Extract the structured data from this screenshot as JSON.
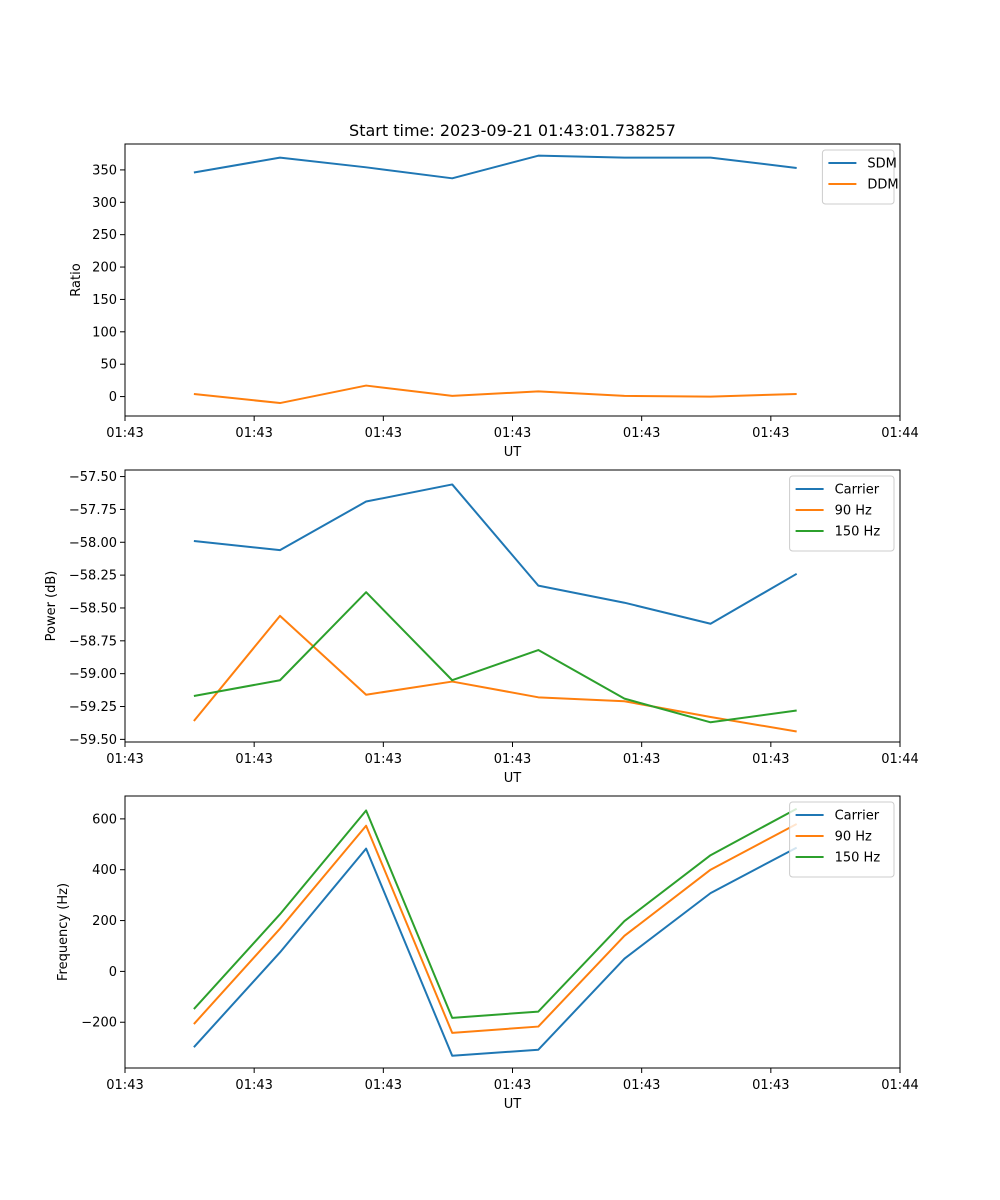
{
  "chart_data": [
    {
      "type": "line",
      "title": "Start time: 2023-09-21 01:43:01.738257",
      "xlabel": "UT",
      "ylabel": "Ratio",
      "x": [
        1,
        2,
        3,
        4,
        5,
        6,
        7,
        8
      ],
      "xlim": [
        0.2,
        9.2
      ],
      "x_ticks": [
        0.2,
        1.7,
        3.2,
        4.7,
        6.2,
        7.7,
        9.2
      ],
      "x_tick_labels": [
        "01:43",
        "01:43",
        "01:43",
        "01:43",
        "01:43",
        "01:43",
        "01:44"
      ],
      "ylim": [
        -30,
        390
      ],
      "y_ticks": [
        0,
        50,
        100,
        150,
        200,
        250,
        300,
        350
      ],
      "y_tick_labels": [
        "0",
        "50",
        "100",
        "150",
        "200",
        "250",
        "300",
        "350"
      ],
      "legend_position": "top-right",
      "series": [
        {
          "name": "SDM",
          "color": "#1f77b4",
          "values": [
            346,
            369,
            354,
            337,
            372,
            369,
            369,
            353
          ]
        },
        {
          "name": "DDM",
          "color": "#ff7f0e",
          "values": [
            4,
            -10,
            17,
            1,
            8,
            1,
            0,
            4
          ]
        }
      ]
    },
    {
      "type": "line",
      "xlabel": "UT",
      "ylabel": "Power (dB)",
      "x": [
        1,
        2,
        3,
        4,
        5,
        6,
        7,
        8
      ],
      "xlim": [
        0.2,
        9.2
      ],
      "x_ticks": [
        0.2,
        1.7,
        3.2,
        4.7,
        6.2,
        7.7,
        9.2
      ],
      "x_tick_labels": [
        "01:43",
        "01:43",
        "01:43",
        "01:43",
        "01:43",
        "01:43",
        "01:44"
      ],
      "ylim": [
        -59.52,
        -57.45
      ],
      "y_ticks": [
        -57.5,
        -57.75,
        -58.0,
        -58.25,
        -58.5,
        -58.75,
        -59.0,
        -59.25,
        -59.5
      ],
      "y_tick_labels": [
        "−57.50",
        "−57.75",
        "−58.00",
        "−58.25",
        "−58.50",
        "−58.75",
        "−59.00",
        "−59.25",
        "−59.50"
      ],
      "legend_position": "top-right",
      "series": [
        {
          "name": "Carrier",
          "color": "#1f77b4",
          "values": [
            -57.99,
            -58.06,
            -57.69,
            -57.56,
            -58.33,
            -58.46,
            -58.62,
            -58.24
          ]
        },
        {
          "name": "90 Hz",
          "color": "#ff7f0e",
          "values": [
            -59.36,
            -58.56,
            -59.16,
            -59.06,
            -59.18,
            -59.21,
            -59.33,
            -59.44
          ]
        },
        {
          "name": "150 Hz",
          "color": "#2ca02c",
          "values": [
            -59.17,
            -59.05,
            -58.38,
            -59.05,
            -58.82,
            -59.19,
            -59.37,
            -59.28
          ]
        }
      ]
    },
    {
      "type": "line",
      "xlabel": "UT",
      "ylabel": "Frequency (Hz)",
      "x": [
        1,
        2,
        3,
        4,
        5,
        6,
        7,
        8
      ],
      "xlim": [
        0.2,
        9.2
      ],
      "x_ticks": [
        0.2,
        1.7,
        3.2,
        4.7,
        6.2,
        7.7,
        9.2
      ],
      "x_tick_labels": [
        "01:43",
        "01:43",
        "01:43",
        "01:43",
        "01:43",
        "01:43",
        "01:44"
      ],
      "ylim": [
        -380,
        690
      ],
      "y_ticks": [
        -200,
        0,
        200,
        400,
        600
      ],
      "y_tick_labels": [
        "−200",
        "0",
        "200",
        "400",
        "600"
      ],
      "legend_position": "top-right",
      "series": [
        {
          "name": "Carrier",
          "color": "#1f77b4",
          "values": [
            -298,
            75,
            483,
            -332,
            -308,
            50,
            308,
            487
          ]
        },
        {
          "name": "90 Hz",
          "color": "#ff7f0e",
          "values": [
            -207,
            168,
            573,
            -242,
            -217,
            140,
            400,
            580
          ]
        },
        {
          "name": "150 Hz",
          "color": "#2ca02c",
          "values": [
            -148,
            225,
            633,
            -183,
            -158,
            198,
            457,
            640
          ]
        }
      ]
    }
  ]
}
